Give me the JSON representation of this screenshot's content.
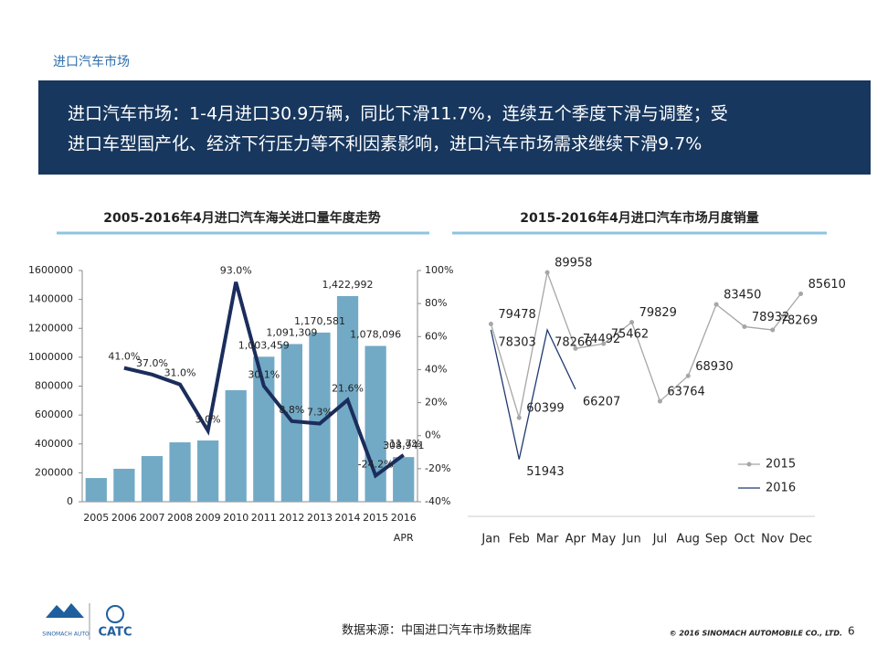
{
  "header": {
    "title": "进口汽车市场"
  },
  "banner": {
    "lines": [
      "进口汽车市场：1-4月进口30.9万辆，同比下滑11.7%，连续五个季度下滑与调整；受",
      "进口车型国产化、经济下行压力等不利因素影响，进口汽车市场需求继续下滑9.7%"
    ]
  },
  "chart_data": [
    {
      "type": "bar",
      "title": "2005-2016年4月进口汽车海关进口量年度走势",
      "categories": [
        "2005",
        "2006",
        "2007",
        "2008",
        "2009",
        "2010",
        "2011",
        "2012",
        "2013",
        "2014",
        "2015",
        "2016"
      ],
      "category_note": "APR",
      "series": [
        {
          "type": "bar",
          "color": "#72aac6",
          "values": [
            164000,
            228000,
            316000,
            411000,
            424000,
            772000,
            1003459,
            1091309,
            1170581,
            1422992,
            1078096,
            308941
          ],
          "value_labels": [
            null,
            null,
            null,
            null,
            null,
            null,
            "1,003,459",
            "1,091,309",
            "1,170,581",
            "1,422,992",
            "1,078,096",
            "308,941"
          ]
        },
        {
          "type": "line",
          "axis": "y2",
          "color": "#1b2d5c",
          "values": [
            null,
            41.0,
            37.0,
            31.0,
            3.0,
            93.0,
            30.1,
            8.8,
            7.3,
            21.6,
            -24.2,
            -11.7
          ],
          "value_labels": [
            null,
            "41.0%",
            "37.0%",
            "31.0%",
            "3.0%",
            "93.0%",
            "30.1%",
            "8.8%",
            "7.3%",
            "21.6%",
            "-24.2%",
            "-11.7%"
          ]
        }
      ],
      "ylim": [
        0,
        1600000
      ],
      "yticks": [
        0,
        200000,
        400000,
        600000,
        800000,
        1000000,
        1200000,
        1400000,
        1600000
      ],
      "y2lim": [
        -40,
        100
      ],
      "y2ticks": [
        {
          "value": -40,
          "label": "-40%"
        },
        {
          "value": -20,
          "label": "-20%"
        },
        {
          "value": 0,
          "label": "0%"
        },
        {
          "value": 20,
          "label": "20%"
        },
        {
          "value": 40,
          "label": "40%"
        },
        {
          "value": 60,
          "label": "60%"
        },
        {
          "value": 80,
          "label": "80%"
        },
        {
          "value": 100,
          "label": "100%"
        }
      ]
    },
    {
      "type": "line",
      "title": "2015-2016年4月进口汽车市场月度销量",
      "categories": [
        "Jan",
        "Feb",
        "Mar",
        "Apr",
        "May",
        "Jun",
        "Jul",
        "Aug",
        "Sep",
        "Oct",
        "Nov",
        "Dec"
      ],
      "series": [
        {
          "name": "2015",
          "color": "#a6a6a6",
          "marker": true,
          "values": [
            79478,
            60399,
            89958,
            74492,
            75462,
            79829,
            63764,
            68930,
            83450,
            78932,
            78269,
            85610
          ]
        },
        {
          "name": "2016",
          "color": "#1f3a6e",
          "marker": false,
          "values": [
            78303,
            51943,
            78266,
            66207,
            null,
            null,
            null,
            null,
            null,
            null,
            null,
            null
          ]
        }
      ],
      "ylim": [
        45000,
        95000
      ],
      "legend": "lower-right"
    }
  ],
  "footer": {
    "source": "数据来源：中国进口汽车市场数据库",
    "copyright": "© 2016 SINOMACH AUTOMOBILE CO., LTD.",
    "page": "6",
    "logo_left": "SINOMACH AUTO",
    "logo_right": "CATC"
  }
}
